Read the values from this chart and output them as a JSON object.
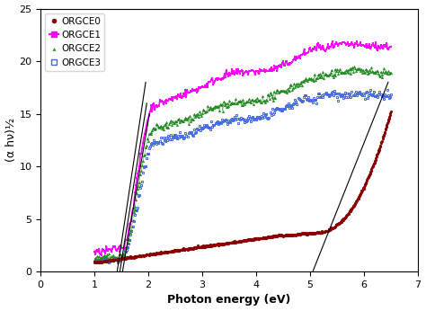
{
  "title": "",
  "xlabel": "Photon energy (eV)",
  "ylabel": "(α hν)½",
  "xlim": [
    0,
    7
  ],
  "ylim": [
    0,
    25
  ],
  "xticks": [
    0,
    1,
    2,
    3,
    4,
    5,
    6,
    7
  ],
  "yticks": [
    0,
    5,
    10,
    15,
    20,
    25
  ],
  "colors": {
    "ORGCE0": "#8B0000",
    "ORGCE1": "#FF00FF",
    "ORGCE2": "#228B22",
    "ORGCE3": "#4169E1"
  },
  "tangent_lines": [
    {
      "x1": 1.42,
      "y1": 0.0,
      "x2": 1.95,
      "y2": 18.0
    },
    {
      "x1": 1.47,
      "y1": 0.0,
      "x2": 1.97,
      "y2": 16.0
    },
    {
      "x1": 1.52,
      "y1": 0.0,
      "x2": 2.02,
      "y2": 15.0
    },
    {
      "x1": 5.05,
      "y1": 0.0,
      "x2": 6.45,
      "y2": 18.0
    }
  ],
  "background_color": "#ffffff"
}
